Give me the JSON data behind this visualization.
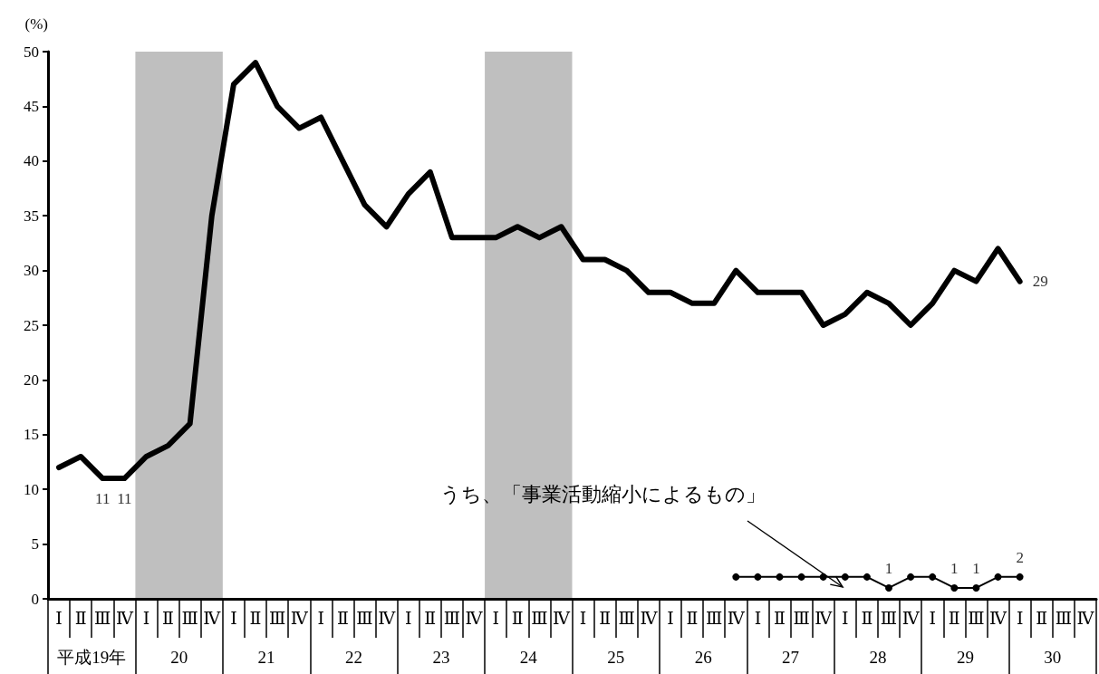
{
  "chart_data": {
    "type": "line",
    "ylabel": "(%)",
    "categories": [
      "Ⅰ",
      "Ⅱ",
      "Ⅲ",
      "Ⅳ",
      "Ⅰ",
      "Ⅱ",
      "Ⅲ",
      "Ⅳ",
      "Ⅰ",
      "Ⅱ",
      "Ⅲ",
      "Ⅳ",
      "Ⅰ",
      "Ⅱ",
      "Ⅲ",
      "Ⅳ",
      "Ⅰ",
      "Ⅱ",
      "Ⅲ",
      "Ⅳ",
      "Ⅰ",
      "Ⅱ",
      "Ⅲ",
      "Ⅳ",
      "Ⅰ",
      "Ⅱ",
      "Ⅲ",
      "Ⅳ",
      "Ⅰ",
      "Ⅱ",
      "Ⅲ",
      "Ⅳ",
      "Ⅰ",
      "Ⅱ",
      "Ⅲ",
      "Ⅳ",
      "Ⅰ",
      "Ⅱ",
      "Ⅲ",
      "Ⅳ",
      "Ⅰ",
      "Ⅱ",
      "Ⅲ",
      "Ⅳ",
      "Ⅰ",
      "Ⅱ",
      "Ⅲ",
      "Ⅳ"
    ],
    "series": [
      {
        "color": "#000000",
        "marker": "none",
        "values": [
          12,
          13,
          11,
          11,
          13,
          14,
          16,
          35,
          47,
          49,
          45,
          43,
          44,
          40,
          36,
          34,
          37,
          39,
          33,
          33,
          33,
          34,
          33,
          34,
          31,
          31,
          30,
          28,
          28,
          27,
          27,
          30,
          28,
          28,
          28,
          25,
          26,
          28,
          27,
          25,
          27,
          30,
          29,
          32,
          29,
          null,
          null,
          null
        ],
        "value_labels": [
          null,
          null,
          "11",
          "11",
          null,
          null,
          null,
          null,
          null,
          null,
          null,
          null,
          null,
          null,
          null,
          null,
          null,
          null,
          null,
          null,
          null,
          null,
          null,
          null,
          null,
          null,
          null,
          null,
          null,
          null,
          null,
          null,
          null,
          null,
          null,
          null,
          null,
          null,
          null,
          null,
          null,
          null,
          null,
          null,
          "29",
          null,
          null,
          null
        ]
      },
      {
        "color": "#000000",
        "marker": "circle",
        "values": [
          null,
          null,
          null,
          null,
          null,
          null,
          null,
          null,
          null,
          null,
          null,
          null,
          null,
          null,
          null,
          null,
          null,
          null,
          null,
          null,
          null,
          null,
          null,
          null,
          null,
          null,
          null,
          null,
          null,
          null,
          null,
          2,
          2,
          2,
          2,
          2,
          2,
          2,
          1,
          2,
          2,
          1,
          1,
          2,
          2,
          null,
          null,
          null
        ],
        "value_labels": [
          null,
          null,
          null,
          null,
          null,
          null,
          null,
          null,
          null,
          null,
          null,
          null,
          null,
          null,
          null,
          null,
          null,
          null,
          null,
          null,
          null,
          null,
          null,
          null,
          null,
          null,
          null,
          null,
          null,
          null,
          null,
          null,
          null,
          null,
          null,
          null,
          null,
          null,
          "1",
          null,
          null,
          "1",
          "1",
          null,
          "2",
          null,
          null,
          null
        ]
      }
    ],
    "line_style": "solid",
    "x2lim": [
      18.5,
      30.5
    ],
    "x2ticks": [
      {
        "value": 19,
        "label": "平成19年"
      },
      20,
      21,
      22,
      23,
      24,
      25,
      26,
      27,
      28,
      29,
      30
    ],
    "ylim": [
      0,
      50
    ],
    "yticks": [
      0,
      5,
      10,
      15,
      20,
      25,
      30,
      35,
      40,
      45,
      50
    ],
    "bands": [
      {
        "axis": "x2",
        "from": 19.5,
        "to": 20.5,
        "color": "#bfbfbf"
      },
      {
        "axis": "x2",
        "from": 23.5,
        "to": 24.5,
        "color": "#bfbfbf"
      }
    ],
    "annotations": [
      "うち、「事業活動縮小によるもの」"
    ]
  }
}
